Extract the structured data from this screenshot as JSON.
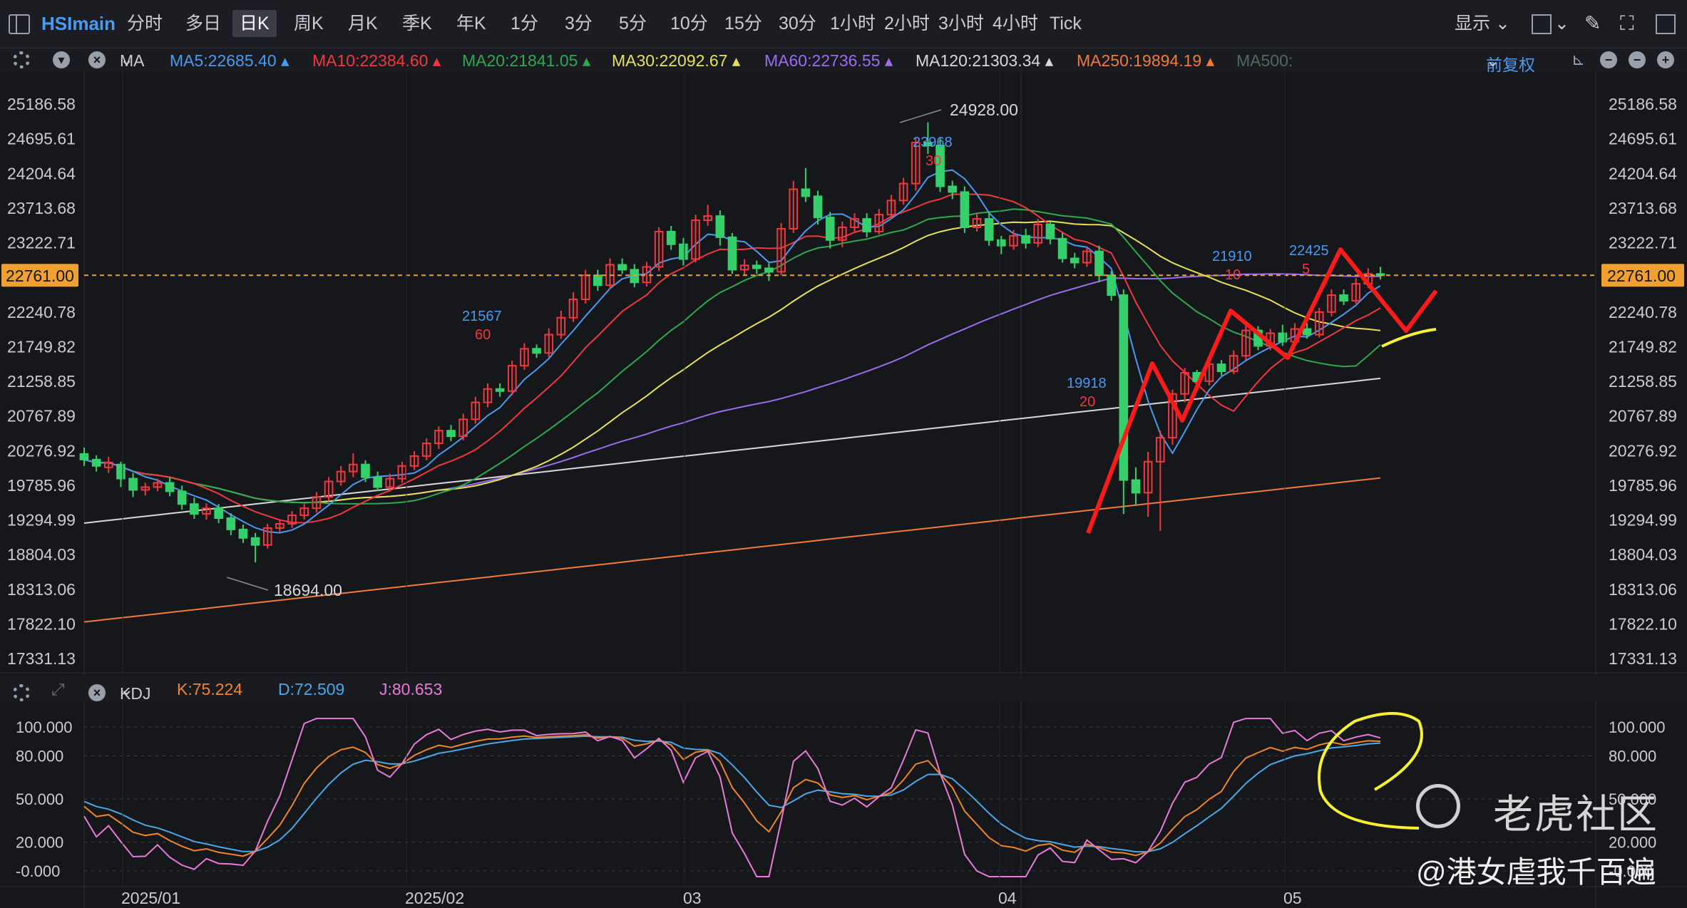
{
  "toolbar": {
    "symbol": "HSImain",
    "timeframes": [
      "分时",
      "多日",
      "日K",
      "周K",
      "月K",
      "季K",
      "年K",
      "1分",
      "3分",
      "5分",
      "10分",
      "15分",
      "30分",
      "1小时",
      "2小时",
      "3小时",
      "4小时",
      "Tick"
    ],
    "active_timeframe": "日K",
    "display_label": "显示"
  },
  "ma_legend": {
    "label": "MA",
    "items": [
      {
        "text": "MA5:22685.40",
        "color": "#4a9af0"
      },
      {
        "text": "MA10:22384.60",
        "color": "#f0383f"
      },
      {
        "text": "MA20:21841.05",
        "color": "#2fa84f"
      },
      {
        "text": "MA30:22092.67",
        "color": "#e6e05a"
      },
      {
        "text": "MA60:22736.55",
        "color": "#9b6cf0"
      },
      {
        "text": "MA120:21303.34",
        "color": "#d8d8d8"
      },
      {
        "text": "MA250:19894.19",
        "color": "#f07a3a"
      },
      {
        "text": "MA500:",
        "color": "#4d6b5a"
      }
    ],
    "adjust_label": "前复权"
  },
  "price_axis": [
    "25186.58",
    "24695.61",
    "24204.64",
    "23713.68",
    "23222.71",
    "22761.00",
    "22240.78",
    "21749.82",
    "21258.85",
    "20767.89",
    "20276.92",
    "19785.96",
    "19294.99",
    "18804.03",
    "18313.06",
    "17822.10",
    "17331.13"
  ],
  "current_price": "22761.00",
  "annotations": {
    "high": "24928.00",
    "low": "18694.00",
    "ma_note_60": {
      "value": "21567",
      "period": "60"
    },
    "ma_note_30": {
      "value": "23968",
      "period": "30"
    },
    "ma_note_20": {
      "value": "19918",
      "period": "20"
    },
    "ma_note_10": {
      "value": "21910",
      "period": "10"
    },
    "ma_note_5": {
      "value": "22425",
      "period": "5"
    }
  },
  "kdj_legend": {
    "label": "KDJ",
    "k": "K:75.224",
    "d": "D:72.509",
    "j": "J:80.653"
  },
  "kdj_axis": [
    "100.000",
    "80.000",
    "50.000",
    "20.000",
    "-0.000"
  ],
  "date_axis": [
    "2025/01",
    "2025/02",
    "03",
    "04",
    "05"
  ],
  "watermark": {
    "brand": "老虎社区",
    "author": "@港女虐我千百遍"
  },
  "colors": {
    "up": "#f0383f",
    "down": "#35d06b",
    "bg": "#16171b"
  },
  "chart_data": {
    "type": "candlestick",
    "candles": [
      [
        20230,
        20150,
        20320,
        20060
      ],
      [
        20150,
        20060,
        20210,
        19980
      ],
      [
        20040,
        20110,
        20190,
        19960
      ],
      [
        20080,
        19880,
        20120,
        19760
      ],
      [
        19880,
        19720,
        19960,
        19620
      ],
      [
        19720,
        19760,
        19820,
        19640
      ],
      [
        19760,
        19820,
        19880,
        19700
      ],
      [
        19820,
        19700,
        19900,
        19630
      ],
      [
        19700,
        19520,
        19780,
        19440
      ],
      [
        19520,
        19380,
        19610,
        19310
      ],
      [
        19380,
        19460,
        19530,
        19300
      ],
      [
        19460,
        19320,
        19520,
        19250
      ],
      [
        19320,
        19160,
        19390,
        19080
      ],
      [
        19160,
        19040,
        19230,
        18970
      ],
      [
        19040,
        18940,
        19110,
        18694
      ],
      [
        18940,
        19180,
        19240,
        18890
      ],
      [
        19180,
        19240,
        19300,
        19120
      ],
      [
        19240,
        19360,
        19420,
        19180
      ],
      [
        19360,
        19460,
        19520,
        19300
      ],
      [
        19460,
        19620,
        19690,
        19400
      ],
      [
        19620,
        19840,
        19900,
        19560
      ],
      [
        19840,
        19980,
        20060,
        19780
      ],
      [
        19980,
        20080,
        20240,
        19900
      ],
      [
        20080,
        19900,
        20140,
        19830
      ],
      [
        19900,
        19760,
        19980,
        19700
      ],
      [
        19760,
        19880,
        19950,
        19700
      ],
      [
        19880,
        20060,
        20120,
        19820
      ],
      [
        20060,
        20200,
        20270,
        20000
      ],
      [
        20200,
        20380,
        20450,
        20140
      ],
      [
        20380,
        20560,
        20620,
        20300
      ],
      [
        20560,
        20480,
        20640,
        20410
      ],
      [
        20480,
        20720,
        20800,
        20420
      ],
      [
        20720,
        20960,
        21040,
        20660
      ],
      [
        20960,
        21150,
        21230,
        20890
      ],
      [
        21150,
        21120,
        21230,
        21040
      ],
      [
        21120,
        21480,
        21550,
        21060
      ],
      [
        21480,
        21720,
        21800,
        21420
      ],
      [
        21720,
        21660,
        21780,
        21590
      ],
      [
        21660,
        21920,
        22010,
        21600
      ],
      [
        21920,
        22160,
        22260,
        21860
      ],
      [
        22160,
        22420,
        22520,
        22100
      ],
      [
        22420,
        22760,
        22840,
        22360
      ],
      [
        22760,
        22620,
        22840,
        22540
      ],
      [
        22620,
        22910,
        23000,
        22560
      ],
      [
        22910,
        22840,
        23000,
        22780
      ],
      [
        22840,
        22660,
        22920,
        22590
      ],
      [
        22660,
        22880,
        22950,
        22600
      ],
      [
        22880,
        23380,
        23440,
        22820
      ],
      [
        23380,
        23200,
        23460,
        23120
      ],
      [
        23200,
        22990,
        23290,
        22900
      ],
      [
        22990,
        23540,
        23620,
        22940
      ],
      [
        23540,
        23600,
        23760,
        23460
      ],
      [
        23600,
        23300,
        23680,
        23180
      ],
      [
        23300,
        22840,
        23360,
        22780
      ],
      [
        22840,
        22900,
        22990,
        22760
      ],
      [
        22900,
        22860,
        22970,
        22780
      ],
      [
        22860,
        22810,
        22930,
        22680
      ],
      [
        22810,
        23420,
        23500,
        22760
      ],
      [
        23420,
        23980,
        24100,
        23360
      ],
      [
        23980,
        23880,
        24280,
        23800
      ],
      [
        23880,
        23580,
        23960,
        23480
      ],
      [
        23580,
        23260,
        23660,
        23140
      ],
      [
        23260,
        23440,
        23520,
        23160
      ],
      [
        23440,
        23560,
        23640,
        23380
      ],
      [
        23560,
        23380,
        23640,
        23300
      ],
      [
        23380,
        23620,
        23700,
        23340
      ],
      [
        23620,
        23820,
        23900,
        23560
      ],
      [
        23820,
        24060,
        24140,
        23760
      ],
      [
        24060,
        24640,
        24700,
        23960
      ],
      [
        24640,
        24600,
        24928,
        24480
      ],
      [
        24600,
        24020,
        24700,
        23940
      ],
      [
        24020,
        23940,
        24100,
        23840
      ],
      [
        23940,
        23440,
        24020,
        23360
      ],
      [
        23440,
        23560,
        23640,
        23380
      ],
      [
        23560,
        23260,
        23660,
        23180
      ],
      [
        23260,
        23180,
        23320,
        23060
      ],
      [
        23180,
        23320,
        23400,
        23120
      ],
      [
        23320,
        23220,
        23420,
        23140
      ],
      [
        23220,
        23480,
        23560,
        23160
      ],
      [
        23480,
        23280,
        23520,
        23200
      ],
      [
        23280,
        23000,
        23360,
        22940
      ],
      [
        23000,
        22940,
        23080,
        22860
      ],
      [
        22940,
        23100,
        23160,
        22880
      ],
      [
        23100,
        22760,
        23180,
        22660
      ],
      [
        22760,
        22480,
        22820,
        22400
      ],
      [
        22480,
        19860,
        22560,
        19380
      ],
      [
        19860,
        19680,
        20040,
        19500
      ],
      [
        19680,
        20120,
        20260,
        19340
      ],
      [
        20120,
        20460,
        20560,
        19140
      ],
      [
        20460,
        21080,
        21140,
        20360
      ],
      [
        21080,
        21380,
        21450,
        20960
      ],
      [
        21380,
        21260,
        21420,
        21180
      ],
      [
        21260,
        21500,
        21580,
        21200
      ],
      [
        21500,
        21400,
        21560,
        21340
      ],
      [
        21400,
        21620,
        21700,
        21360
      ],
      [
        21620,
        21980,
        22060,
        21560
      ],
      [
        21980,
        21760,
        22040,
        21700
      ],
      [
        21760,
        21940,
        22000,
        21700
      ],
      [
        21940,
        21820,
        22060,
        21760
      ],
      [
        21820,
        22000,
        22080,
        21780
      ],
      [
        22000,
        21920,
        22080,
        21860
      ],
      [
        21920,
        22240,
        22300,
        21880
      ],
      [
        22240,
        22480,
        22560,
        22180
      ],
      [
        22480,
        22400,
        22560,
        22340
      ],
      [
        22400,
        22640,
        22720,
        22360
      ],
      [
        22640,
        22780,
        22860,
        22580
      ],
      [
        22780,
        22761,
        22880,
        22700
      ]
    ],
    "title": "",
    "ylim": [
      17331.13,
      25186.58
    ],
    "kdj": {
      "k": 75.224,
      "d": 72.509,
      "j": 80.653,
      "ylim": [
        -5,
        110
      ]
    }
  }
}
